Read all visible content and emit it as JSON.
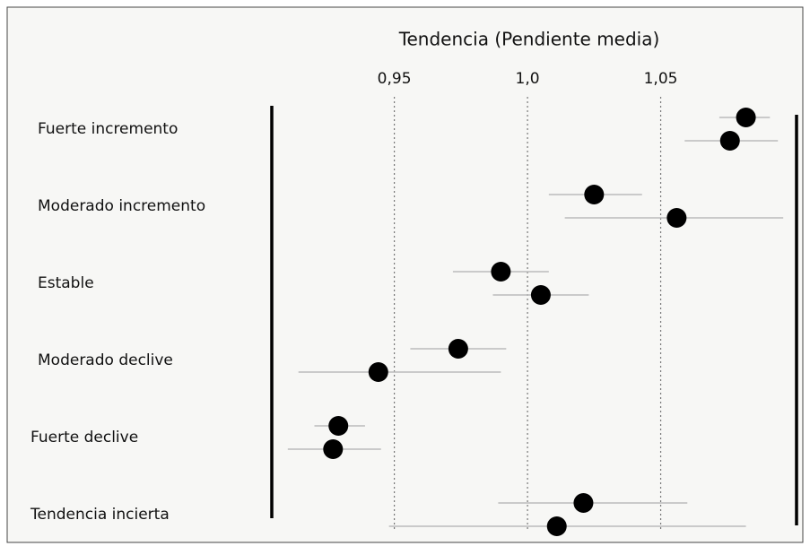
{
  "chart_data": {
    "type": "forest",
    "title": "Tendencia (Pendiente media)",
    "categories": [
      "Fuerte incremento",
      "Moderado incremento",
      "Estable",
      "Moderado declive",
      "Fuerte declive",
      "Tendencia incierta"
    ],
    "series": [
      {
        "color": "#000000",
        "values": [
          1.082,
          1.025,
          0.99,
          0.974,
          0.929,
          1.021
        ],
        "low": [
          1.072,
          1.008,
          0.972,
          0.956,
          0.92,
          0.989
        ],
        "high": [
          1.091,
          1.043,
          1.008,
          0.992,
          0.939,
          1.06
        ]
      },
      {
        "color": "#000000",
        "values": [
          1.076,
          1.056,
          1.005,
          0.944,
          0.927,
          1.011
        ],
        "low": [
          1.059,
          1.014,
          0.987,
          0.914,
          0.91,
          0.948
        ],
        "high": [
          1.094,
          1.096,
          1.023,
          0.99,
          0.945,
          1.082
        ]
      }
    ],
    "xlim": [
      0.904,
      1.101
    ],
    "xticks": [
      {
        "value": 0.95,
        "label": "0,95"
      },
      {
        "value": 1.0,
        "label": "1,0"
      },
      {
        "value": 1.05,
        "label": "1,05"
      }
    ],
    "grid": true
  }
}
